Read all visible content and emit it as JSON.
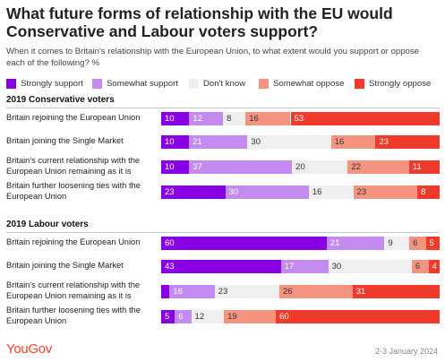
{
  "header": {
    "title": "What future forms of relationship with the EU would Conservative and Labour voters support?",
    "subtitle": "When it comes to Britain's relationship with the European Union, to what extent would you support or oppose each of the following? %"
  },
  "legend": [
    {
      "label": "Strongly support",
      "color": "#8a00e5"
    },
    {
      "label": "Somewhat support",
      "color": "#c38af0"
    },
    {
      "label": "Don't know",
      "color": "#efefef"
    },
    {
      "label": "Somewhat oppose",
      "color": "#f49380"
    },
    {
      "label": "Strongly oppose",
      "color": "#f03a2c"
    }
  ],
  "chart_data": {
    "type": "bar",
    "orientation": "horizontal",
    "stacked": true,
    "series_names": [
      "Strongly support",
      "Somewhat support",
      "Don't know",
      "Somewhat oppose",
      "Strongly oppose"
    ],
    "groups": [
      {
        "name": "2019 Conservative voters",
        "rows": [
          {
            "label": "Britain rejoining the European Union",
            "values": [
              10,
              12,
              8,
              16,
              53
            ]
          },
          {
            "label": "Britain joining the Single Market",
            "values": [
              10,
              21,
              30,
              16,
              23
            ]
          },
          {
            "label": "Britain's current relationship with the European Union remaining as it is",
            "values": [
              10,
              37,
              20,
              22,
              11
            ]
          },
          {
            "label": "Britain further loosening ties with the European Union",
            "values": [
              23,
              30,
              16,
              23,
              8
            ]
          }
        ]
      },
      {
        "name": "2019 Labour voters",
        "rows": [
          {
            "label": "Britain rejoining the European Union",
            "values": [
              60,
              21,
              9,
              6,
              5
            ]
          },
          {
            "label": "Britain joining the Single Market",
            "values": [
              43,
              17,
              30,
              6,
              4
            ]
          },
          {
            "label": "Britain's current relationship with the European Union remaining as it is",
            "values": [
              3,
              16,
              23,
              26,
              31
            ]
          },
          {
            "label": "Britain further loosening ties with the European Union",
            "values": [
              5,
              6,
              12,
              19,
              60
            ]
          }
        ]
      }
    ],
    "label_colors": [
      "#ffffff",
      "#ffffff",
      "#333333",
      "#333333",
      "#ffffff"
    ]
  },
  "footer": {
    "logo": "YouGov",
    "date": "2-3 January 2024"
  }
}
